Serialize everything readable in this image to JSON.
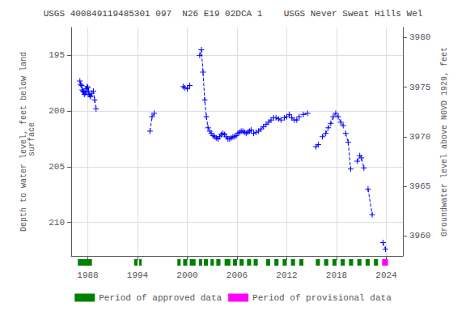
{
  "chart_data": {
    "type": "line",
    "title": "USGS 400849119485301 097  N26 E19 02DCA 1    USGS Never Sweat Hills Wel",
    "ylabel": "Depth to water level, feet below land\n surface",
    "y2label": "Groundwater level above NGVD 1929, feet",
    "xlim": [
      1986.0,
      2026.0
    ],
    "xticks": [
      1988,
      1994,
      2000,
      2006,
      2012,
      2018,
      2024
    ],
    "ylim": [
      213.0,
      192.5
    ],
    "yticks": [
      195,
      200,
      205,
      210
    ],
    "y2lim": [
      3958.0,
      3981.0
    ],
    "y2ticks": [
      3960,
      3965,
      3970,
      3975,
      3980
    ],
    "x": [
      1987.05,
      1987.15,
      1987.25,
      1987.33,
      1987.42,
      1987.5,
      1987.58,
      1987.67,
      1987.75,
      1987.83,
      1987.92,
      1988.0,
      1988.08,
      1988.17,
      1988.25,
      1988.33,
      1988.5,
      1988.67,
      1988.83,
      1989.0,
      null,
      1995.5,
      1995.75,
      1996.0,
      null,
      1999.5,
      1999.7,
      2000.0,
      2000.3,
      null,
      2001.5,
      2001.7,
      2001.9,
      2002.1,
      2002.3,
      2002.5,
      2002.7,
      2002.9,
      2003.1,
      2003.3,
      2003.5,
      2003.7,
      2003.9,
      2004.1,
      2004.3,
      2004.5,
      2004.7,
      2004.9,
      2005.1,
      2005.3,
      2005.5,
      2005.7,
      2005.9,
      2006.1,
      2006.3,
      2006.5,
      2006.7,
      2006.9,
      2007.1,
      2007.3,
      2007.5,
      2007.7,
      null,
      2008.0,
      2008.3,
      2008.6,
      2008.9,
      2009.2,
      2009.5,
      2009.8,
      2010.1,
      2010.4,
      2010.7,
      2011.0,
      2011.3,
      null,
      2011.7,
      2012.0,
      2012.3,
      2012.6,
      2012.9,
      2013.2,
      2013.5,
      null,
      2014.0,
      2014.5,
      null,
      2015.5,
      2015.8,
      null,
      2016.3,
      2016.7,
      2017.0,
      2017.3,
      2017.6,
      2017.9,
      2018.2,
      2018.5,
      2018.8,
      null,
      2019.1,
      2019.4,
      2019.7,
      null,
      2020.5,
      2020.8,
      2021.0,
      2021.3,
      null,
      2021.8,
      2022.3,
      null,
      2023.6,
      2023.9
    ],
    "values": [
      197.3,
      197.6,
      197.7,
      198.1,
      198.2,
      198.3,
      198.5,
      198.4,
      198.3,
      198.0,
      197.8,
      197.9,
      198.2,
      198.5,
      198.6,
      198.7,
      198.4,
      198.2,
      199.0,
      199.8,
      null,
      201.8,
      200.5,
      200.2,
      null,
      197.8,
      197.9,
      198.0,
      197.7,
      null,
      195.0,
      194.5,
      196.5,
      199.0,
      200.5,
      201.5,
      201.8,
      202.0,
      202.2,
      202.3,
      202.4,
      202.5,
      202.3,
      202.1,
      202.0,
      202.1,
      202.3,
      202.5,
      202.5,
      202.4,
      202.3,
      202.3,
      202.2,
      202.0,
      201.9,
      201.8,
      201.8,
      201.9,
      202.0,
      201.9,
      201.8,
      201.7,
      null,
      202.0,
      201.9,
      201.8,
      201.6,
      201.4,
      201.2,
      201.0,
      200.8,
      200.6,
      200.6,
      200.7,
      200.8,
      null,
      200.6,
      200.5,
      200.3,
      200.6,
      200.8,
      200.8,
      200.5,
      null,
      200.3,
      200.2,
      null,
      203.2,
      203.0,
      null,
      202.3,
      202.0,
      201.5,
      201.1,
      200.5,
      200.2,
      200.5,
      201.0,
      201.3,
      null,
      202.0,
      202.8,
      205.2,
      null,
      204.5,
      204.0,
      204.2,
      205.1,
      null,
      207.0,
      209.3,
      null,
      211.8,
      212.4
    ],
    "color": "#0000ff",
    "line_style": "dashed",
    "marker": "plus",
    "grid": true,
    "legend": "bottom",
    "periods": [
      {
        "name": "Period of approved data",
        "color": "#008000",
        "ranges": [
          [
            1986.8,
            1988.5
          ],
          [
            1993.6,
            1994.0
          ],
          [
            1994.2,
            1994.5
          ],
          [
            1998.8,
            1999.2
          ],
          [
            1999.5,
            2000.0
          ],
          [
            2000.3,
            2001.0
          ],
          [
            2001.4,
            2001.8
          ],
          [
            2002.0,
            2002.5
          ],
          [
            2002.8,
            2003.2
          ],
          [
            2003.5,
            2004.0
          ],
          [
            2004.5,
            2005.2
          ],
          [
            2005.5,
            2006.0
          ],
          [
            2006.3,
            2006.8
          ],
          [
            2007.2,
            2007.7
          ],
          [
            2008.0,
            2008.5
          ],
          [
            2009.5,
            2010.0
          ],
          [
            2010.5,
            2011.0
          ],
          [
            2011.5,
            2012.0
          ],
          [
            2012.5,
            2013.0
          ],
          [
            2013.5,
            2014.0
          ],
          [
            2015.5,
            2016.0
          ],
          [
            2016.5,
            2017.0
          ],
          [
            2017.5,
            2018.0
          ],
          [
            2018.5,
            2019.0
          ],
          [
            2019.5,
            2020.0
          ],
          [
            2020.5,
            2021.0
          ],
          [
            2021.5,
            2022.0
          ],
          [
            2022.5,
            2023.0
          ]
        ]
      },
      {
        "name": "Period of provisional data",
        "color": "#ff00ff",
        "ranges": [
          [
            2023.5,
            2024.2
          ]
        ]
      }
    ]
  }
}
